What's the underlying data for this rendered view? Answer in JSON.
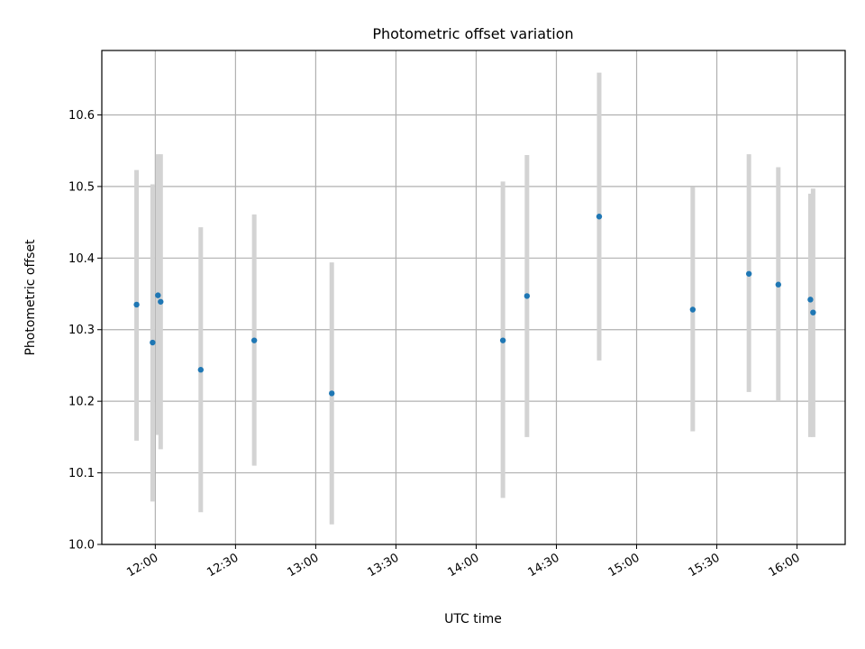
{
  "chart_data": {
    "type": "scatter",
    "title": "Photometric offset variation",
    "xlabel": "UTC time",
    "ylabel": "Photometric offset",
    "x_is_time": true,
    "xlim": [
      "11:40",
      "16:18"
    ],
    "ylim": [
      10.0,
      10.69
    ],
    "x_ticks": [
      "12:00",
      "12:30",
      "13:00",
      "13:30",
      "14:00",
      "14:30",
      "15:00",
      "15:30",
      "16:00"
    ],
    "y_ticks": [
      10.0,
      10.1,
      10.2,
      10.3,
      10.4,
      10.5,
      10.6
    ],
    "y_tick_labels": [
      "10.0",
      "10.1",
      "10.2",
      "10.3",
      "10.4",
      "10.5",
      "10.6"
    ],
    "grid": true,
    "marker_color": "#1f77b4",
    "errorbar_color": "#d3d3d3",
    "points": [
      {
        "x": "11:53",
        "y": 10.335,
        "y_low": 10.145,
        "y_high": 10.523
      },
      {
        "x": "11:59",
        "y": 10.282,
        "y_low": 10.06,
        "y_high": 10.503
      },
      {
        "x": "12:01",
        "y": 10.348,
        "y_low": 10.153,
        "y_high": 10.545
      },
      {
        "x": "12:02",
        "y": 10.339,
        "y_low": 10.133,
        "y_high": 10.545
      },
      {
        "x": "12:17",
        "y": 10.244,
        "y_low": 10.045,
        "y_high": 10.443
      },
      {
        "x": "12:37",
        "y": 10.285,
        "y_low": 10.11,
        "y_high": 10.461
      },
      {
        "x": "13:06",
        "y": 10.211,
        "y_low": 10.028,
        "y_high": 10.394
      },
      {
        "x": "14:10",
        "y": 10.285,
        "y_low": 10.065,
        "y_high": 10.507
      },
      {
        "x": "14:19",
        "y": 10.347,
        "y_low": 10.15,
        "y_high": 10.544
      },
      {
        "x": "14:46",
        "y": 10.458,
        "y_low": 10.257,
        "y_high": 10.659
      },
      {
        "x": "15:21",
        "y": 10.328,
        "y_low": 10.158,
        "y_high": 10.499
      },
      {
        "x": "15:42",
        "y": 10.378,
        "y_low": 10.213,
        "y_high": 10.545
      },
      {
        "x": "15:53",
        "y": 10.363,
        "y_low": 10.2,
        "y_high": 10.527
      },
      {
        "x": "16:05",
        "y": 10.342,
        "y_low": 10.15,
        "y_high": 10.49
      },
      {
        "x": "16:06",
        "y": 10.324,
        "y_low": 10.15,
        "y_high": 10.497
      }
    ]
  }
}
